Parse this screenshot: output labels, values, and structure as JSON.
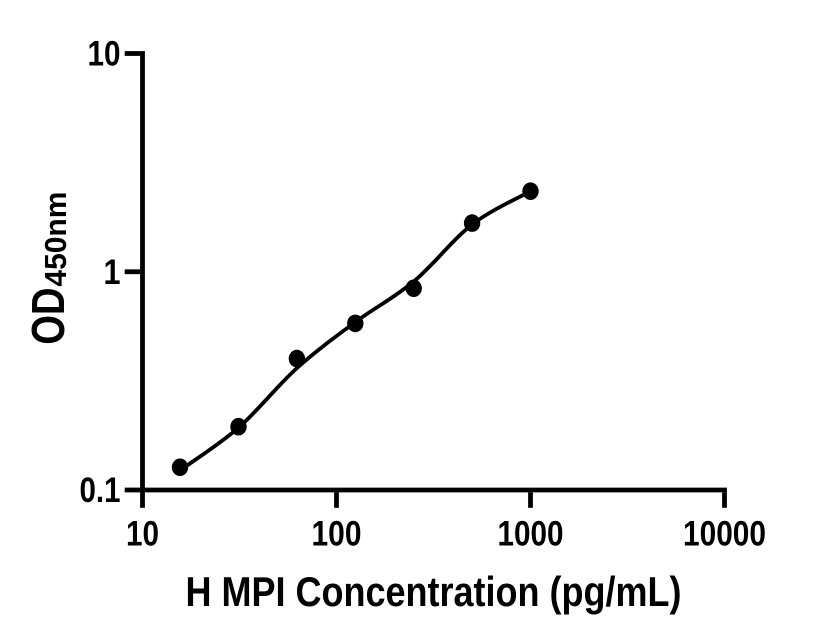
{
  "chart_data": {
    "type": "scatter",
    "description": "ELISA standard curve, log-log scatter plot with 4PL fitted curve",
    "title": "",
    "xlabel": "H MPI Concentration (pg/mL)",
    "ylabel_main": "OD",
    "ylabel_sub": "450nm",
    "x_scale": "log",
    "y_scale": "log",
    "xlim": [
      10,
      10000
    ],
    "ylim": [
      0.1,
      10
    ],
    "grid": false,
    "legend": false,
    "x_ticks": [
      {
        "value": 10,
        "label": "10"
      },
      {
        "value": 100,
        "label": "100"
      },
      {
        "value": 1000,
        "label": "1000"
      },
      {
        "value": 10000,
        "label": "10000"
      }
    ],
    "y_ticks": [
      {
        "value": 0.1,
        "label": "0.1"
      },
      {
        "value": 1,
        "label": "1"
      },
      {
        "value": 10,
        "label": "10"
      }
    ],
    "series": [
      {
        "name": "standard-points",
        "marker": "circle",
        "color": "#000000",
        "points": [
          {
            "x": 15.6,
            "y": 0.127
          },
          {
            "x": 31.25,
            "y": 0.195
          },
          {
            "x": 62.5,
            "y": 0.4
          },
          {
            "x": 125,
            "y": 0.58
          },
          {
            "x": 250,
            "y": 0.84
          },
          {
            "x": 500,
            "y": 1.67
          },
          {
            "x": 1000,
            "y": 2.34
          }
        ]
      }
    ],
    "fit_curve": {
      "name": "4PL-fit",
      "color": "#000000",
      "points": [
        {
          "x": 15.6,
          "y": 0.123
        },
        {
          "x": 31.25,
          "y": 0.193
        },
        {
          "x": 62.5,
          "y": 0.362
        },
        {
          "x": 125,
          "y": 0.588
        },
        {
          "x": 250,
          "y": 0.902
        },
        {
          "x": 500,
          "y": 1.646
        },
        {
          "x": 1000,
          "y": 2.339
        }
      ]
    },
    "colors": {
      "axis": "#000000",
      "text": "#000000",
      "marker": "#000000",
      "curve": "#000000",
      "background": "#ffffff"
    }
  }
}
